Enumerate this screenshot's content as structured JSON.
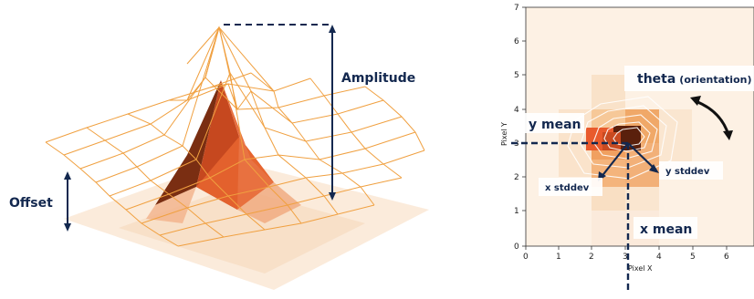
{
  "left": {
    "offset_label": "Offset",
    "amplitude_label": "Amplitude"
  },
  "right": {
    "x_axis_label": "Pixel X",
    "y_axis_label": "Pixel Y",
    "x_ticks": [
      "0",
      "1",
      "2",
      "3",
      "4",
      "5",
      "6"
    ],
    "y_ticks": [
      "0",
      "1",
      "2",
      "3",
      "4",
      "5",
      "6",
      "7"
    ],
    "theta_label": "theta",
    "theta_sub": "(orientation)",
    "y_mean_label": "y mean",
    "x_mean_label": "x mean",
    "x_stddev_label": "x stddev",
    "y_stddev_label": "y stddev"
  },
  "colors": {
    "label": "#13284f",
    "grid_orange": "#f0a040",
    "heat_dark": "#6b2c12",
    "heat_mid": "#e8603a",
    "heat_light": "#f7d2a8"
  }
}
